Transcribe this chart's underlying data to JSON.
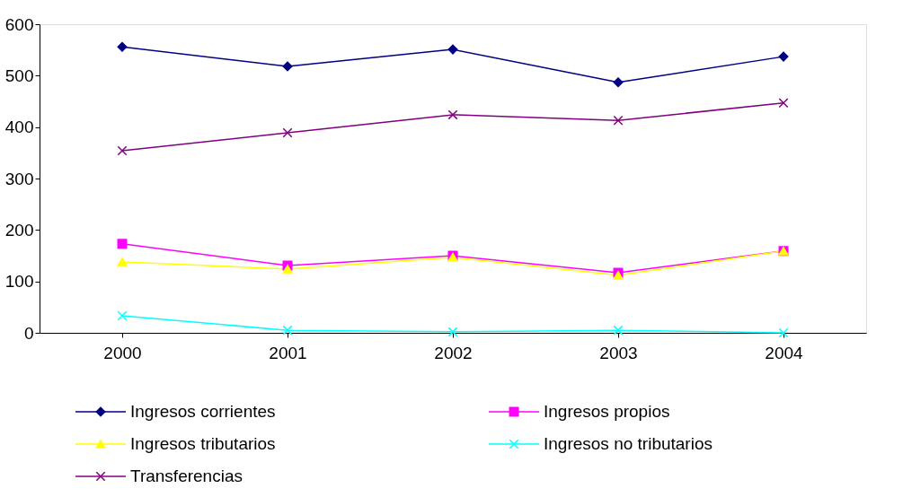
{
  "chart_data": {
    "type": "line",
    "categories": [
      "2000",
      "2001",
      "2002",
      "2003",
      "2004"
    ],
    "series": [
      {
        "name": "Ingresos corrientes",
        "color": "#000080",
        "marker": "diamond",
        "values": [
          556,
          518,
          551,
          487,
          537
        ]
      },
      {
        "name": "Ingresos propios",
        "color": "#ff00ff",
        "marker": "square",
        "values": [
          173,
          131,
          150,
          117,
          159
        ]
      },
      {
        "name": "Ingresos tributarios",
        "color": "#ffff00",
        "marker": "triangle",
        "values": [
          138,
          124,
          147,
          112,
          159
        ]
      },
      {
        "name": "Ingresos no tributarios",
        "color": "#00ffff",
        "marker": "cross",
        "values": [
          33,
          5,
          2,
          5,
          0
        ]
      },
      {
        "name": "Transferencias",
        "color": "#800080",
        "marker": "cross",
        "values": [
          354,
          389,
          424,
          413,
          447
        ]
      }
    ],
    "ylim": [
      0,
      600
    ],
    "yticks": [
      0,
      100,
      200,
      300,
      400,
      500,
      600
    ],
    "grid": false,
    "legend": "bottom"
  }
}
